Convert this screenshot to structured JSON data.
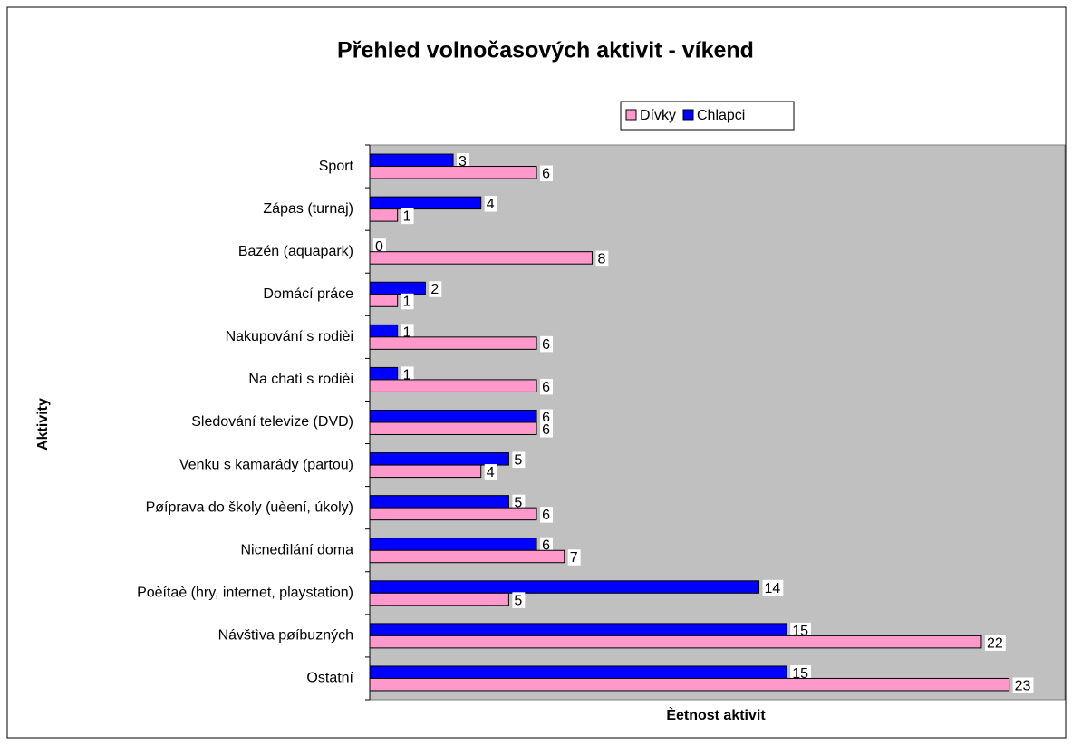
{
  "chart_data": {
    "type": "bar",
    "orientation": "horizontal",
    "title": "Přehled volnočasových aktivit - víkend",
    "x_label": "Èetnost aktivit",
    "y_label": "Aktivity",
    "categories": [
      "Sport",
      "Zápas (turnaj)",
      "Bazén (aquapark)",
      "Domácí práce",
      "Nakupování s rodièi",
      "Na chatì s rodièi",
      "Sledování televize (DVD)",
      "Venku s kamarády (partou)",
      "Pøíprava do školy (uèení, úkoly)",
      "Nicnedìlání doma",
      "Poèítaè (hry, internet, playstation)",
      "Návštìva pøíbuzných",
      "Ostatní"
    ],
    "series": [
      {
        "name": "Dívky",
        "color": "#ff99cc",
        "values": [
          6,
          1,
          8,
          1,
          6,
          6,
          6,
          4,
          6,
          7,
          5,
          22,
          23
        ]
      },
      {
        "name": "Chlapci",
        "color": "#0000ff",
        "values": [
          3,
          4,
          0,
          2,
          1,
          1,
          6,
          5,
          5,
          6,
          14,
          15,
          15
        ]
      }
    ],
    "xlim": [
      0,
      25
    ],
    "background": "#c0c0c0",
    "legend": "top"
  }
}
